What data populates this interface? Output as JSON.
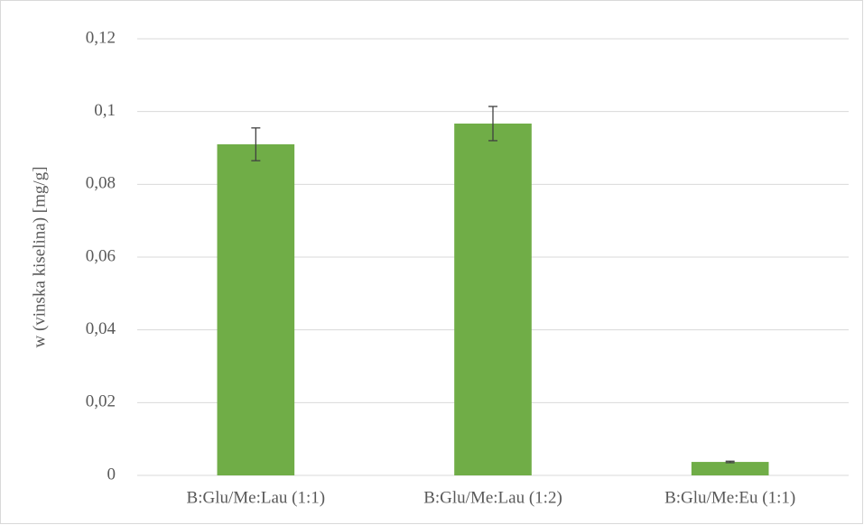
{
  "chart_data": {
    "type": "bar",
    "y_label": "w (vinska kiselina) [mg/g]",
    "categories": [
      "B:Glu/Me:Lau (1:1)",
      "B:Glu/Me:Lau (1:2)",
      "B:Glu/Me:Eu (1:1)"
    ],
    "values": [
      0.091,
      0.0967,
      0.0037
    ],
    "errors": [
      0.0045,
      0.0047,
      0.0002
    ],
    "color": "#70ad47",
    "ylim": [
      0,
      0.12
    ],
    "yticks": [
      0,
      {
        "value": 0.02,
        "label": "0,02"
      },
      {
        "value": 0.04,
        "label": "0,04"
      },
      {
        "value": 0.06,
        "label": "0,06"
      },
      {
        "value": 0.08,
        "label": "0,08"
      },
      {
        "value": 0.1,
        "label": "0,1"
      },
      {
        "value": 0.12,
        "label": "0,12"
      }
    ],
    "grid": true
  }
}
